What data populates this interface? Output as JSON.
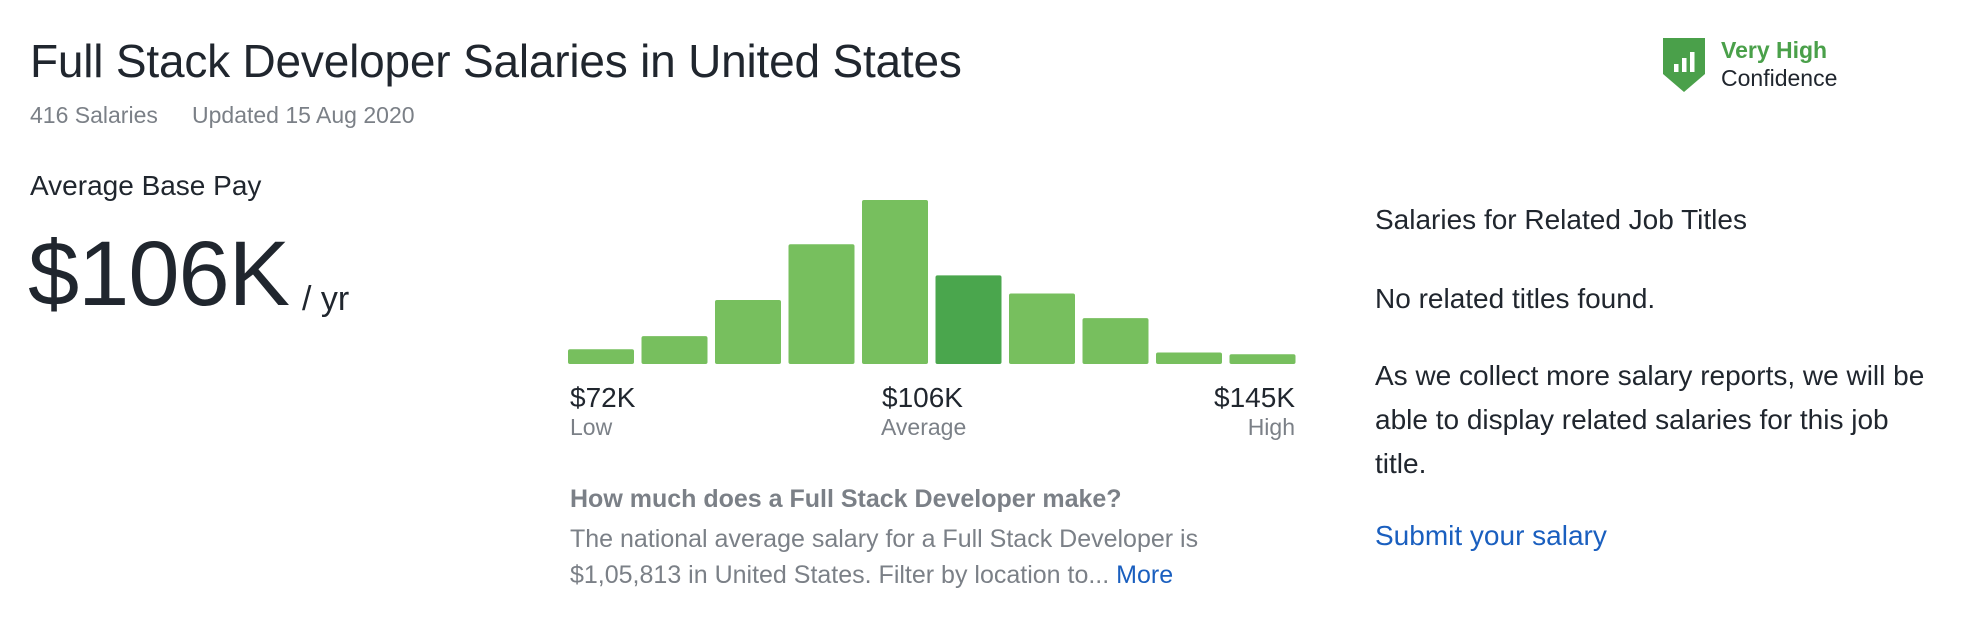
{
  "header": {
    "title": "Full Stack Developer Salaries in United States",
    "salary_count": "416 Salaries",
    "updated": "Updated 15 Aug 2020"
  },
  "confidence": {
    "level": "Very High",
    "label": "Confidence",
    "icon": "shield-bar-chart-icon",
    "color": "#4aa04a"
  },
  "pay": {
    "label": "Average Base Pay",
    "value": "$106K",
    "unit": "/ yr"
  },
  "chart_data": {
    "type": "bar",
    "title": "",
    "xlabel": "",
    "ylabel": "",
    "grid": false,
    "values": [
      9,
      17,
      39,
      73,
      100,
      54,
      43,
      28,
      7,
      6
    ],
    "highlight_index": 5,
    "colors": {
      "bar": "#77bf5e",
      "highlight": "#4aa64d"
    },
    "axis": {
      "low": {
        "value": "$72K",
        "label": "Low"
      },
      "average": {
        "value": "$106K",
        "label": "Average"
      },
      "high": {
        "value": "$145K",
        "label": "High"
      }
    }
  },
  "faq": {
    "question": "How much does a Full Stack Developer make?",
    "answer": "The national average salary for a Full Stack Developer is $1,05,813 in United States. Filter by location to...",
    "more_label": "More"
  },
  "related": {
    "title": "Salaries for Related Job Titles",
    "none_found": "No related titles found.",
    "message": "As we collect more salary reports, we will be able to display related salaries for this job title.",
    "submit_label": "Submit your salary"
  }
}
